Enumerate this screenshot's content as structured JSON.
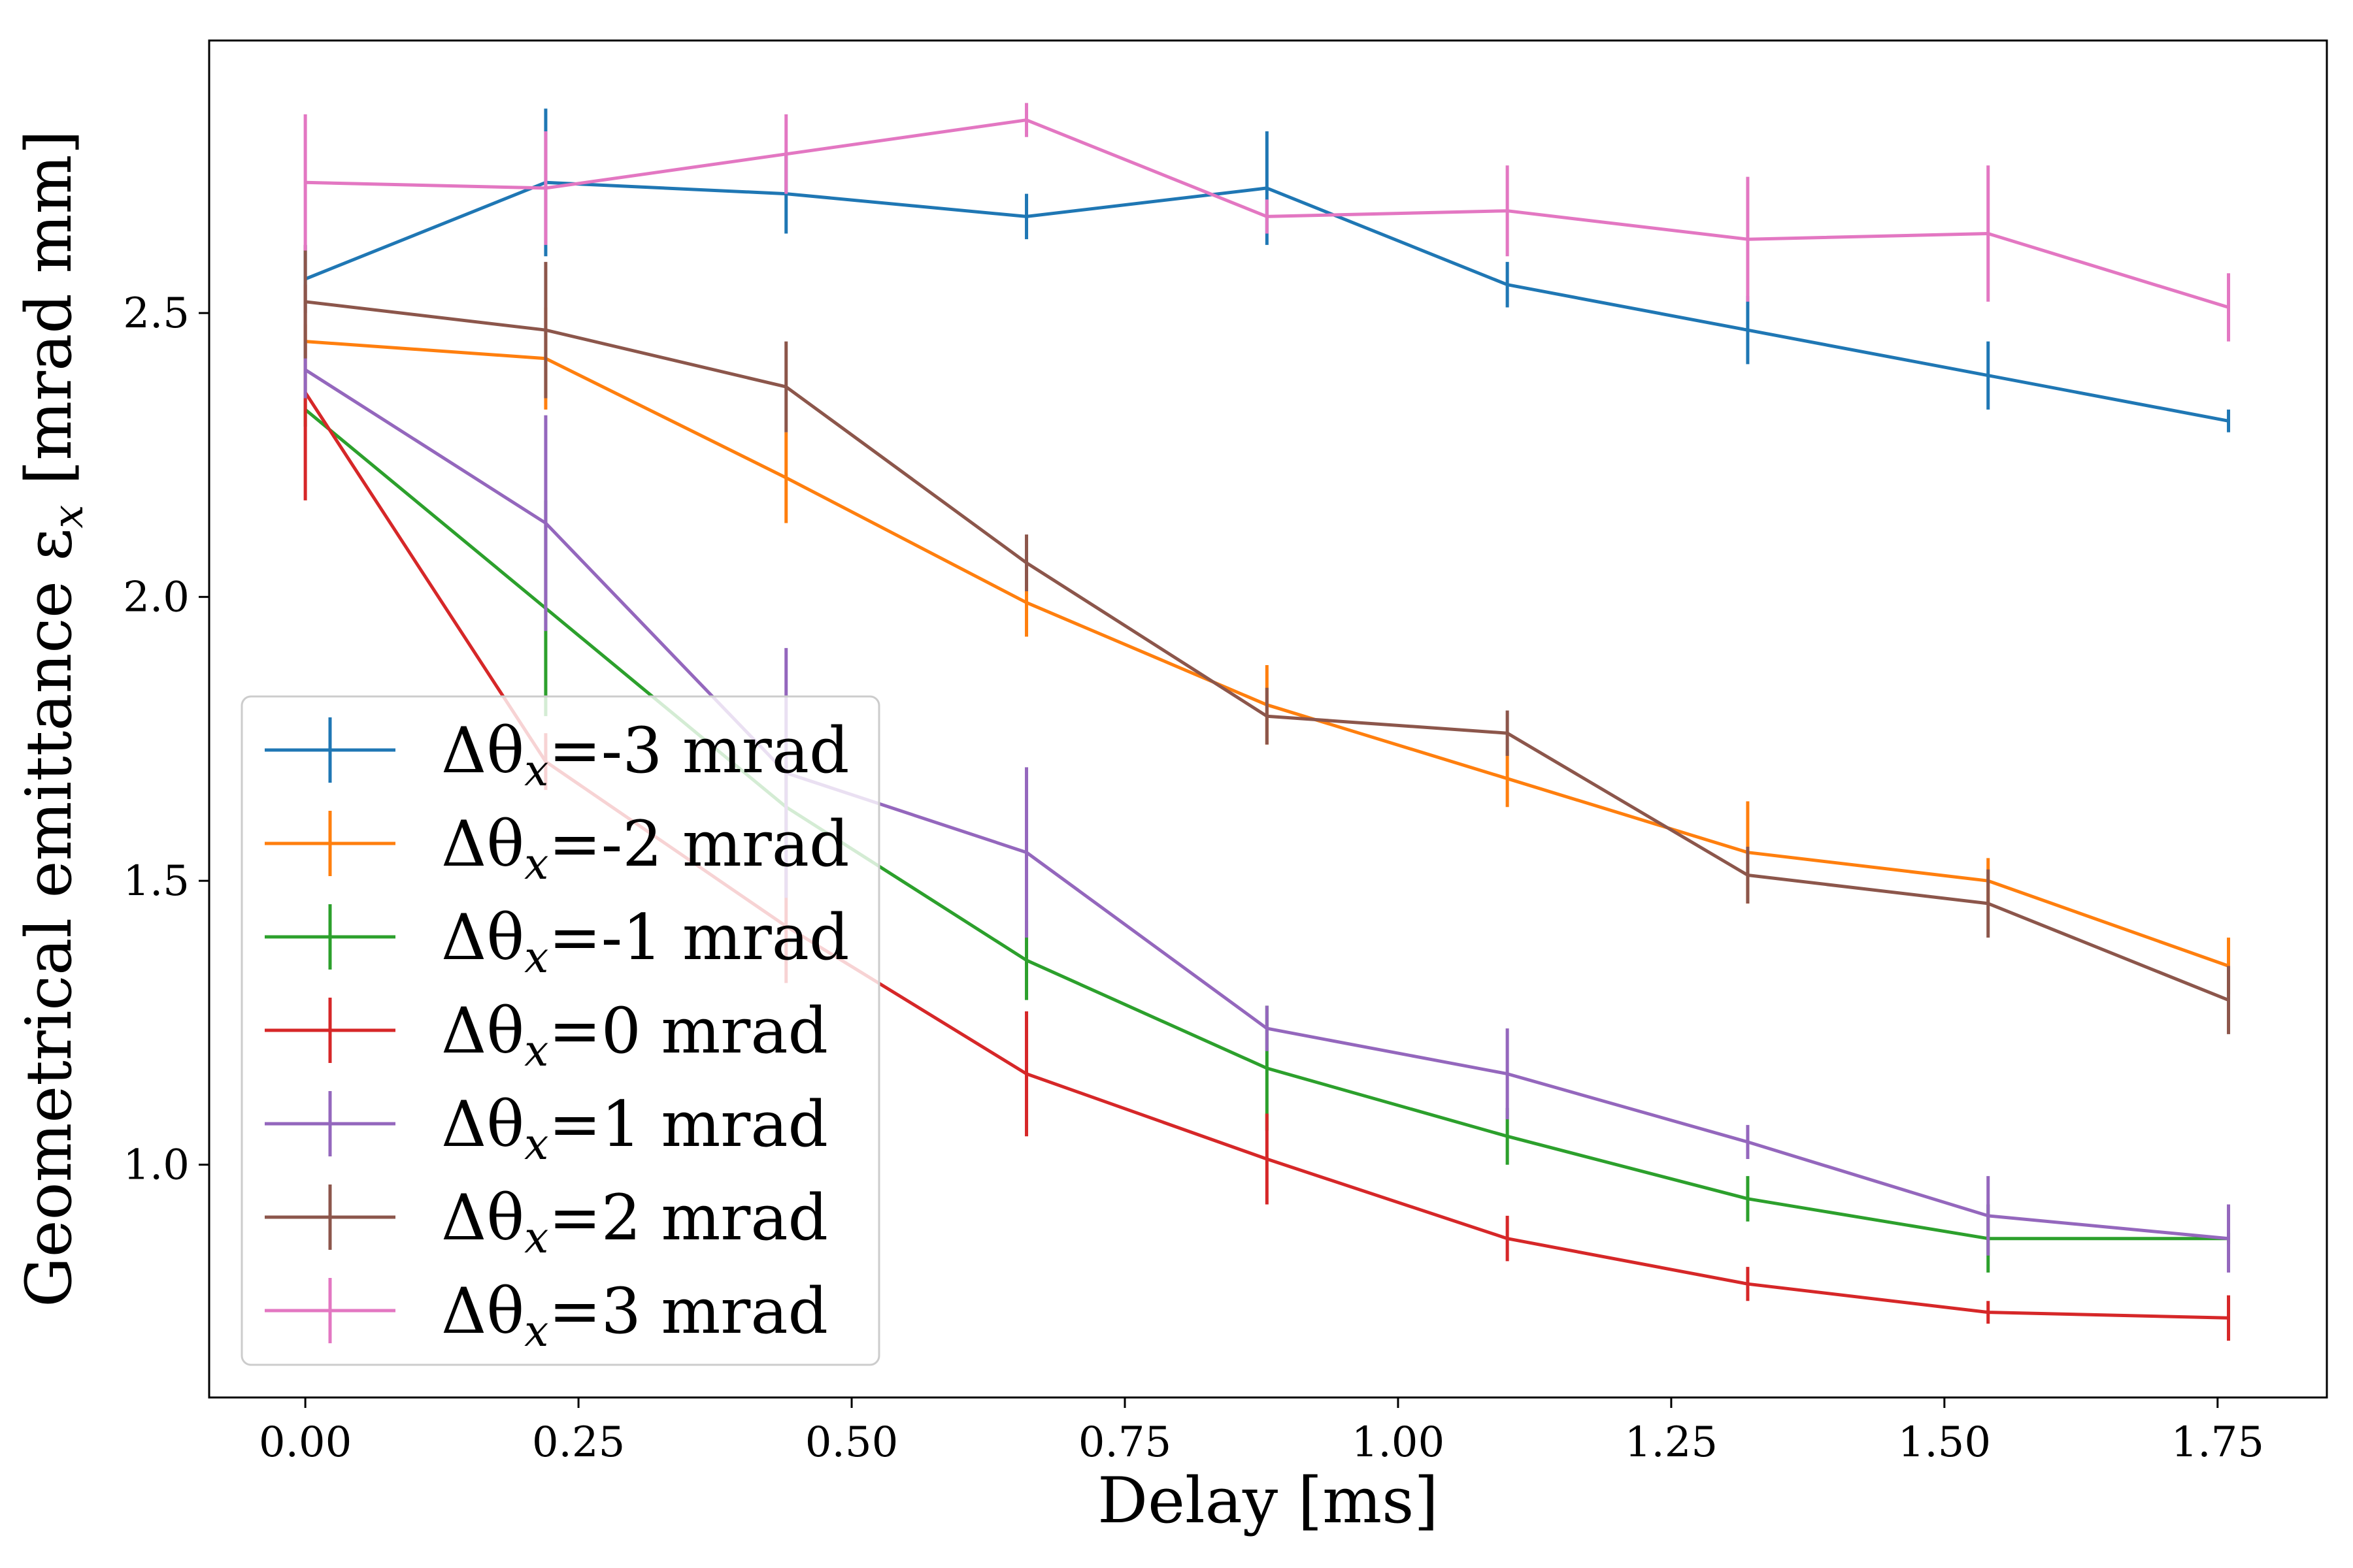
{
  "chart_data": {
    "type": "line",
    "title": "",
    "xlabel": "Delay [ms]",
    "ylabel": "Geometrical emittance ε",
    "ylabel_sub": "x",
    "ylabel_units": " [mrad mm]",
    "xlim": [
      -0.088,
      1.85
    ],
    "ylim": [
      0.59,
      2.98
    ],
    "xticks": [
      0.0,
      0.25,
      0.5,
      0.75,
      1.0,
      1.25,
      1.5,
      1.75
    ],
    "xtick_labels": [
      "0.00",
      "0.25",
      "0.50",
      "0.75",
      "1.00",
      "1.25",
      "1.50",
      "1.75"
    ],
    "yticks": [
      1.0,
      1.5,
      2.0,
      2.5
    ],
    "ytick_labels": [
      "1.0",
      "1.5",
      "2.0",
      "2.5"
    ],
    "grid": false,
    "legend_placement": "lower-left",
    "x": [
      0.0,
      0.22,
      0.44,
      0.66,
      0.88,
      1.1,
      1.32,
      1.54,
      1.76
    ],
    "series": [
      {
        "name": "Δθ",
        "name_sub": "x",
        "name_rest": "=-3 mrad",
        "color": "#1f77b4",
        "values": [
          2.56,
          2.73,
          2.71,
          2.67,
          2.72,
          2.55,
          2.47,
          2.39,
          2.31
        ],
        "errors": [
          0.06,
          0.13,
          0.07,
          0.04,
          0.1,
          0.04,
          0.06,
          0.06,
          0.02
        ]
      },
      {
        "name": "Δθ",
        "name_sub": "x",
        "name_rest": "=-2 mrad",
        "color": "#ff7f0e",
        "values": [
          2.45,
          2.42,
          2.21,
          1.99,
          1.81,
          1.68,
          1.55,
          1.5,
          1.35
        ],
        "errors": [
          0.03,
          0.09,
          0.08,
          0.06,
          0.07,
          0.05,
          0.09,
          0.04,
          0.05
        ]
      },
      {
        "name": "Δθ",
        "name_sub": "x",
        "name_rest": "=-1 mrad",
        "color": "#2ca02c",
        "values": [
          2.33,
          1.98,
          1.63,
          1.36,
          1.17,
          1.05,
          0.94,
          0.87,
          0.87
        ],
        "errors": [
          0.03,
          0.19,
          0.08,
          0.07,
          0.11,
          0.05,
          0.04,
          0.06,
          0.01
        ]
      },
      {
        "name": "Δθ",
        "name_sub": "x",
        "name_rest": "=0 mrad",
        "color": "#d62728",
        "values": [
          2.36,
          1.71,
          1.42,
          1.16,
          1.01,
          0.87,
          0.79,
          0.74,
          0.73
        ],
        "errors": [
          0.19,
          0.05,
          0.1,
          0.11,
          0.08,
          0.04,
          0.03,
          0.02,
          0.04
        ]
      },
      {
        "name": "Δθ",
        "name_sub": "x",
        "name_rest": "=1 mrad",
        "color": "#9467bd",
        "values": [
          2.4,
          2.13,
          1.69,
          1.55,
          1.24,
          1.16,
          1.04,
          0.91,
          0.87
        ],
        "errors": [
          0.05,
          0.19,
          0.22,
          0.15,
          0.04,
          0.08,
          0.03,
          0.07,
          0.06
        ]
      },
      {
        "name": "Δθ",
        "name_sub": "x",
        "name_rest": "=2 mrad",
        "color": "#8c564b",
        "values": [
          2.52,
          2.47,
          2.37,
          2.06,
          1.79,
          1.76,
          1.51,
          1.46,
          1.29
        ],
        "errors": [
          0.1,
          0.12,
          0.08,
          0.05,
          0.05,
          0.04,
          0.05,
          0.06,
          0.06
        ]
      },
      {
        "name": "Δθ",
        "name_sub": "x",
        "name_rest": "=3 mrad",
        "color": "#e377c2",
        "values": [
          2.73,
          2.72,
          2.78,
          2.84,
          2.67,
          2.68,
          2.63,
          2.64,
          2.51
        ],
        "errors": [
          0.12,
          0.1,
          0.07,
          0.03,
          0.03,
          0.08,
          0.11,
          0.12,
          0.06
        ]
      }
    ]
  }
}
